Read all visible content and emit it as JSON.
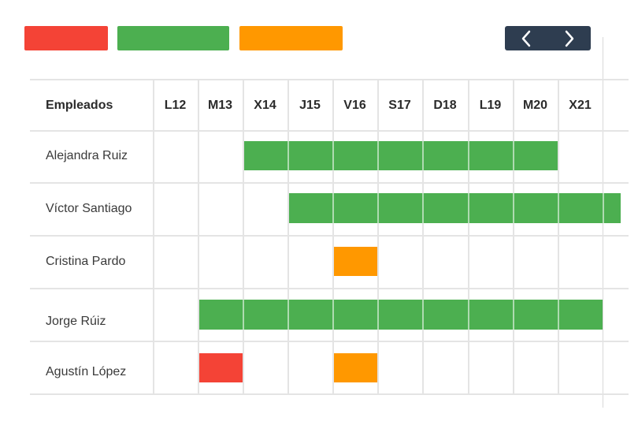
{
  "colors": {
    "red": "#f44336",
    "green": "#4caf50",
    "orange": "#ff9800",
    "nav_bg": "#2e3d50"
  },
  "legend": [
    {
      "color": "red"
    },
    {
      "color": "green"
    },
    {
      "color": "orange"
    }
  ],
  "nav": {
    "prev_icon": "chevron-left-icon",
    "next_icon": "chevron-right-icon"
  },
  "table": {
    "employee_header": "Empleados",
    "days": [
      "L12",
      "M13",
      "X14",
      "J15",
      "V16",
      "S17",
      "D18",
      "L19",
      "M20",
      "X21"
    ],
    "rows": [
      {
        "name": "Alejandra Ruiz",
        "bars": [
          {
            "start_day": "X14",
            "end_day": "M20",
            "color": "green"
          }
        ]
      },
      {
        "name": "Víctor Santiago",
        "bars": [
          {
            "start_day": "J15",
            "end_day": "X21",
            "color": "green",
            "continues": true
          }
        ]
      },
      {
        "name": "Cristina Pardo",
        "bars": [
          {
            "start_day": "V16",
            "end_day": "V16",
            "color": "orange"
          }
        ]
      },
      {
        "name": "Jorge Rúiz",
        "bars": [
          {
            "start_day": "M13",
            "end_day": "X21",
            "color": "green"
          }
        ]
      },
      {
        "name": "Agustín López",
        "bars": [
          {
            "start_day": "M13",
            "end_day": "M13",
            "color": "red"
          },
          {
            "start_day": "V16",
            "end_day": "V16",
            "color": "orange"
          }
        ]
      }
    ]
  }
}
